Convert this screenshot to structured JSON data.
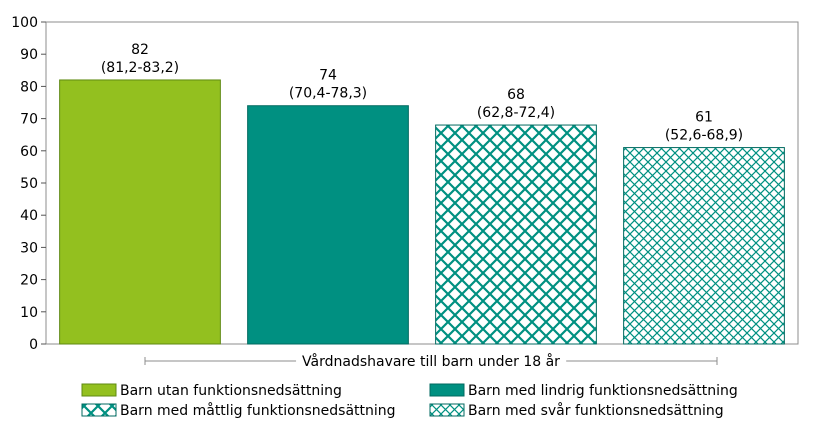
{
  "chart_data": {
    "type": "bar",
    "title": "",
    "xlabel": "Vårdnadshavare till barn under 18 år",
    "ylabel": "",
    "ylim": [
      0,
      100
    ],
    "yticks": [
      0,
      10,
      20,
      30,
      40,
      50,
      60,
      70,
      80,
      90,
      100
    ],
    "grid": false,
    "legend_position": "bottom",
    "categories": [
      "Barn utan funktionsnedsättning",
      "Barn med lindrig funktionsnedsättning",
      "Barn med måttlig funktionsnedsättning",
      "Barn med svår funktionsnedsättning"
    ],
    "series": [
      {
        "values": [
          82,
          74,
          68,
          61
        ],
        "value_labels": [
          "82",
          "74",
          "68",
          "61"
        ],
        "ci_labels": [
          "(81,2-83,2)",
          "(70,4-78,3)",
          "(62,8-72,4)",
          "(52,6-68,9)"
        ]
      }
    ],
    "colors": {
      "bar_fills": [
        "#93c01f",
        "#009081",
        "#009081",
        "#009081"
      ],
      "patterns": [
        "solid",
        "solid",
        "crosshatch",
        "crosshatch-fine"
      ]
    }
  }
}
